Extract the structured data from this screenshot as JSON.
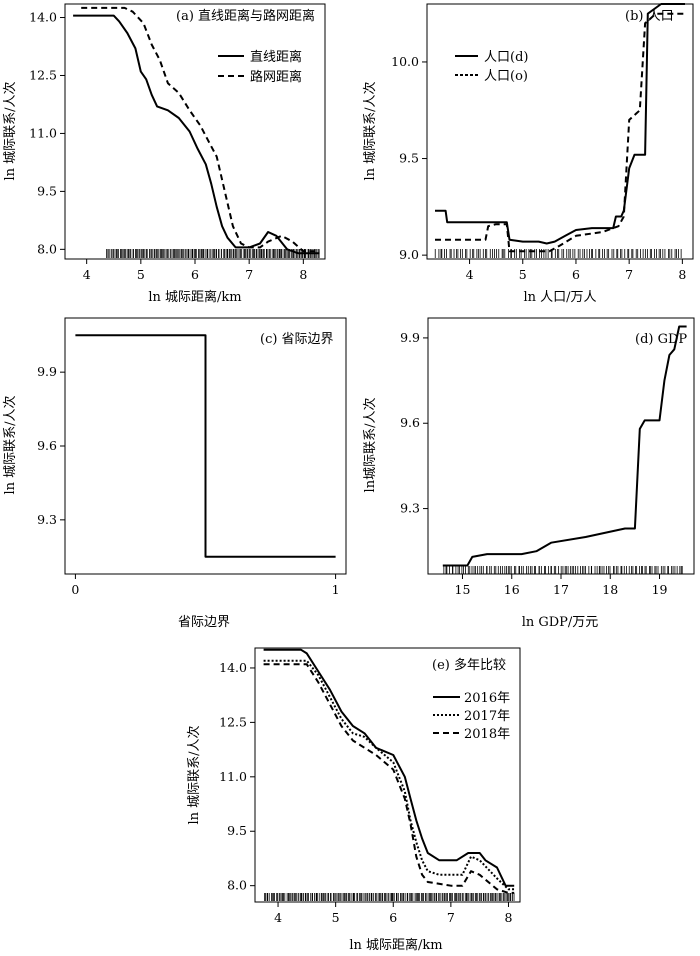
{
  "chart_data": [
    {
      "id": "a",
      "type": "line",
      "title": "(a) 直线距离与路网距离",
      "xlabel": "ln 城际距离/km",
      "ylabel": "ln 城际联系/人次",
      "xlim": [
        3.6,
        8.4
      ],
      "ylim": [
        7.75,
        14.35
      ],
      "xticks": [
        4,
        5,
        6,
        7,
        8
      ],
      "yticks": [
        8.0,
        9.5,
        11.0,
        12.5,
        14.0
      ],
      "ytick_labels": [
        "8.0",
        "9.5",
        "11.0",
        "12.5",
        "14.0"
      ],
      "legend": "top-right",
      "rug": true,
      "series": [
        {
          "name": "直线距离",
          "style": "solid",
          "points": [
            [
              3.75,
              14.05
            ],
            [
              4.5,
              14.05
            ],
            [
              4.6,
              13.9
            ],
            [
              4.75,
              13.6
            ],
            [
              4.9,
              13.2
            ],
            [
              5.0,
              12.6
            ],
            [
              5.1,
              12.4
            ],
            [
              5.2,
              12.0
            ],
            [
              5.3,
              11.7
            ],
            [
              5.5,
              11.6
            ],
            [
              5.7,
              11.4
            ],
            [
              5.9,
              11.05
            ],
            [
              6.05,
              10.6
            ],
            [
              6.2,
              10.2
            ],
            [
              6.3,
              9.7
            ],
            [
              6.4,
              9.1
            ],
            [
              6.5,
              8.6
            ],
            [
              6.6,
              8.3
            ],
            [
              6.75,
              8.05
            ],
            [
              7.0,
              8.05
            ],
            [
              7.2,
              8.15
            ],
            [
              7.35,
              8.45
            ],
            [
              7.5,
              8.35
            ],
            [
              7.7,
              8.0
            ],
            [
              7.9,
              7.9
            ],
            [
              8.3,
              7.9
            ]
          ]
        },
        {
          "name": "路网距离",
          "style": "dashed",
          "points": [
            [
              3.9,
              14.25
            ],
            [
              4.7,
              14.25
            ],
            [
              4.85,
              14.15
            ],
            [
              5.05,
              13.85
            ],
            [
              5.2,
              13.3
            ],
            [
              5.35,
              12.9
            ],
            [
              5.5,
              12.3
            ],
            [
              5.7,
              12.05
            ],
            [
              5.9,
              11.6
            ],
            [
              6.1,
              11.2
            ],
            [
              6.25,
              10.8
            ],
            [
              6.4,
              10.4
            ],
            [
              6.5,
              9.8
            ],
            [
              6.6,
              9.2
            ],
            [
              6.7,
              8.6
            ],
            [
              6.85,
              8.15
            ],
            [
              7.0,
              8.05
            ],
            [
              7.2,
              8.05
            ],
            [
              7.35,
              8.2
            ],
            [
              7.6,
              8.35
            ],
            [
              7.8,
              8.2
            ],
            [
              8.0,
              7.95
            ],
            [
              8.3,
              7.95
            ]
          ]
        }
      ]
    },
    {
      "id": "b",
      "type": "line",
      "title": "(b) 人口",
      "xlabel": "ln 人口/万人",
      "ylabel": "ln 城际联系/人次",
      "xlim": [
        3.2,
        8.2
      ],
      "ylim": [
        8.98,
        10.3
      ],
      "xticks": [
        4,
        5,
        6,
        7,
        8
      ],
      "yticks": [
        9.0,
        9.5,
        10.0
      ],
      "ytick_labels": [
        "9.0",
        "9.5",
        "10.0"
      ],
      "legend": "top-left",
      "rug": true,
      "series": [
        {
          "name": "人口(d)",
          "style": "solid",
          "points": [
            [
              3.35,
              9.23
            ],
            [
              3.55,
              9.23
            ],
            [
              3.58,
              9.17
            ],
            [
              4.5,
              9.17
            ],
            [
              4.7,
              9.17
            ],
            [
              4.75,
              9.08
            ],
            [
              5.0,
              9.07
            ],
            [
              5.3,
              9.07
            ],
            [
              5.45,
              9.06
            ],
            [
              5.6,
              9.07
            ],
            [
              5.8,
              9.1
            ],
            [
              6.0,
              9.13
            ],
            [
              6.3,
              9.14
            ],
            [
              6.5,
              9.14
            ],
            [
              6.7,
              9.14
            ],
            [
              6.75,
              9.2
            ],
            [
              6.85,
              9.2
            ],
            [
              6.9,
              9.23
            ],
            [
              7.0,
              9.45
            ],
            [
              7.1,
              9.52
            ],
            [
              7.3,
              9.52
            ],
            [
              7.35,
              10.25
            ],
            [
              7.6,
              10.3
            ],
            [
              8.05,
              10.3
            ]
          ]
        },
        {
          "name": "人口(o)",
          "style": "dashed",
          "points": [
            [
              3.35,
              9.08
            ],
            [
              4.3,
              9.08
            ],
            [
              4.35,
              9.15
            ],
            [
              4.5,
              9.16
            ],
            [
              4.7,
              9.16
            ],
            [
              4.75,
              9.02
            ],
            [
              5.0,
              9.02
            ],
            [
              5.5,
              9.02
            ],
            [
              5.7,
              9.05
            ],
            [
              6.0,
              9.1
            ],
            [
              6.5,
              9.12
            ],
            [
              6.8,
              9.15
            ],
            [
              6.9,
              9.2
            ],
            [
              7.0,
              9.7
            ],
            [
              7.2,
              9.75
            ],
            [
              7.3,
              10.2
            ],
            [
              7.5,
              10.25
            ],
            [
              8.05,
              10.25
            ]
          ]
        }
      ]
    },
    {
      "id": "c",
      "type": "line",
      "title": "(c) 省际边界",
      "xlabel": "省际边界",
      "ylabel": "ln 城际联系/人次",
      "xlim": [
        -0.04,
        1.04
      ],
      "ylim": [
        9.08,
        10.12
      ],
      "xticks": [
        0,
        1
      ],
      "yticks": [
        9.3,
        9.6,
        9.9
      ],
      "ytick_labels": [
        "9.3",
        "9.6",
        "9.9"
      ],
      "rug": false,
      "series": [
        {
          "style": "solid",
          "points": [
            [
              0.0,
              10.05
            ],
            [
              0.5,
              10.05
            ],
            [
              0.5,
              9.15
            ],
            [
              1.0,
              9.15
            ]
          ]
        }
      ]
    },
    {
      "id": "d",
      "type": "line",
      "title": "(d) GDP",
      "xlabel": "ln GDP/万元",
      "ylabel": "ln城际联系/人次",
      "xlim": [
        14.3,
        19.7
      ],
      "ylim": [
        9.07,
        9.97
      ],
      "xticks": [
        15,
        16,
        17,
        18,
        19
      ],
      "yticks": [
        9.3,
        9.6,
        9.9
      ],
      "ytick_labels": [
        "9.3",
        "9.6",
        "9.9"
      ],
      "rug": true,
      "series": [
        {
          "style": "solid",
          "points": [
            [
              14.6,
              9.1
            ],
            [
              15.1,
              9.1
            ],
            [
              15.2,
              9.13
            ],
            [
              15.5,
              9.14
            ],
            [
              16.2,
              9.14
            ],
            [
              16.5,
              9.15
            ],
            [
              16.8,
              9.18
            ],
            [
              17.5,
              9.2
            ],
            [
              18.3,
              9.23
            ],
            [
              18.5,
              9.23
            ],
            [
              18.6,
              9.58
            ],
            [
              18.7,
              9.61
            ],
            [
              19.0,
              9.61
            ],
            [
              19.1,
              9.75
            ],
            [
              19.2,
              9.84
            ],
            [
              19.3,
              9.86
            ],
            [
              19.4,
              9.94
            ],
            [
              19.55,
              9.94
            ]
          ]
        }
      ]
    },
    {
      "id": "e",
      "type": "line",
      "title": "(e) 多年比较",
      "xlabel": "ln 城际距离/km",
      "ylabel": "ln 城际联系/人次",
      "xlim": [
        3.6,
        8.2
      ],
      "ylim": [
        7.55,
        14.55
      ],
      "xticks": [
        4,
        5,
        6,
        7,
        8
      ],
      "yticks": [
        8.0,
        9.5,
        11.0,
        12.5,
        14.0
      ],
      "ytick_labels": [
        "8.0",
        "9.5",
        "11.0",
        "12.5",
        "14.0"
      ],
      "legend": "top-right",
      "rug": true,
      "series": [
        {
          "name": "2016年",
          "style": "solid",
          "points": [
            [
              3.75,
              14.5
            ],
            [
              4.4,
              14.5
            ],
            [
              4.5,
              14.4
            ],
            [
              4.7,
              13.9
            ],
            [
              4.9,
              13.4
            ],
            [
              5.1,
              12.8
            ],
            [
              5.3,
              12.4
            ],
            [
              5.5,
              12.2
            ],
            [
              5.7,
              11.8
            ],
            [
              6.0,
              11.6
            ],
            [
              6.1,
              11.3
            ],
            [
              6.2,
              11.0
            ],
            [
              6.3,
              10.4
            ],
            [
              6.4,
              9.8
            ],
            [
              6.5,
              9.3
            ],
            [
              6.6,
              8.9
            ],
            [
              6.8,
              8.7
            ],
            [
              7.1,
              8.7
            ],
            [
              7.3,
              8.9
            ],
            [
              7.5,
              8.9
            ],
            [
              7.6,
              8.7
            ],
            [
              7.8,
              8.5
            ],
            [
              7.95,
              8.0
            ],
            [
              8.1,
              8.0
            ]
          ]
        },
        {
          "name": "2017年",
          "style": "dotted",
          "points": [
            [
              3.75,
              14.2
            ],
            [
              4.5,
              14.2
            ],
            [
              4.7,
              13.8
            ],
            [
              4.9,
              13.2
            ],
            [
              5.1,
              12.6
            ],
            [
              5.3,
              12.2
            ],
            [
              5.5,
              12.1
            ],
            [
              5.7,
              11.8
            ],
            [
              6.0,
              11.4
            ],
            [
              6.1,
              11.0
            ],
            [
              6.2,
              10.6
            ],
            [
              6.3,
              9.8
            ],
            [
              6.4,
              9.2
            ],
            [
              6.5,
              8.7
            ],
            [
              6.6,
              8.4
            ],
            [
              6.8,
              8.3
            ],
            [
              7.2,
              8.3
            ],
            [
              7.35,
              8.8
            ],
            [
              7.5,
              8.7
            ],
            [
              7.8,
              8.2
            ],
            [
              8.0,
              7.9
            ],
            [
              8.1,
              7.9
            ]
          ]
        },
        {
          "name": "2018年",
          "style": "dashed",
          "points": [
            [
              3.75,
              14.1
            ],
            [
              4.5,
              14.1
            ],
            [
              4.7,
              13.6
            ],
            [
              4.9,
              13.0
            ],
            [
              5.1,
              12.4
            ],
            [
              5.3,
              12.0
            ],
            [
              5.5,
              11.8
            ],
            [
              5.7,
              11.6
            ],
            [
              6.0,
              11.2
            ],
            [
              6.1,
              10.8
            ],
            [
              6.2,
              10.4
            ],
            [
              6.3,
              9.7
            ],
            [
              6.4,
              8.8
            ],
            [
              6.5,
              8.3
            ],
            [
              6.6,
              8.1
            ],
            [
              7.0,
              8.0
            ],
            [
              7.2,
              8.0
            ],
            [
              7.35,
              8.4
            ],
            [
              7.5,
              8.3
            ],
            [
              7.8,
              7.9
            ],
            [
              8.0,
              7.8
            ],
            [
              8.1,
              7.8
            ]
          ]
        }
      ]
    }
  ]
}
